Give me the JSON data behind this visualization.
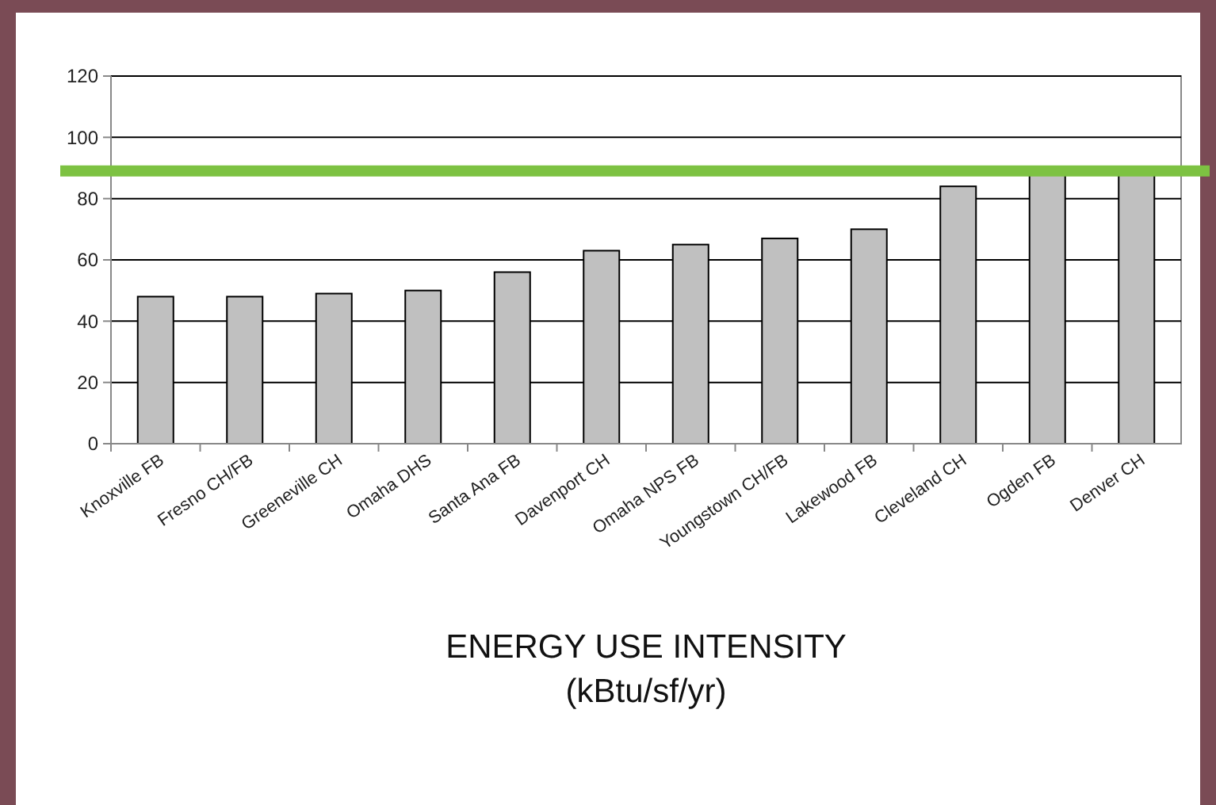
{
  "chart_data": {
    "type": "bar",
    "xlabel": "ENERGY USE INTENSITY\n(kBtu/sf/yr)",
    "categories": [
      "Knoxville FB",
      "Fresno CH/FB",
      "Greeneville CH",
      "Omaha DHS",
      "Santa Ana FB",
      "Davenport CH",
      "Omaha NPS FB",
      "Youngstown CH/FB",
      "Lakewood FB",
      "Cleveland CH",
      "Ogden FB",
      "Denver CH"
    ],
    "values": [
      48,
      48,
      49,
      50,
      56,
      63,
      65,
      67,
      70,
      84,
      88,
      88
    ],
    "color": "#c0c0c0",
    "ylim": [
      0,
      120
    ],
    "yticks": [
      0,
      20,
      40,
      60,
      80,
      100,
      120
    ],
    "grid": "y",
    "ref_lines": [
      {
        "axis": "y",
        "value": 89,
        "color": "#7dc242"
      }
    ]
  }
}
